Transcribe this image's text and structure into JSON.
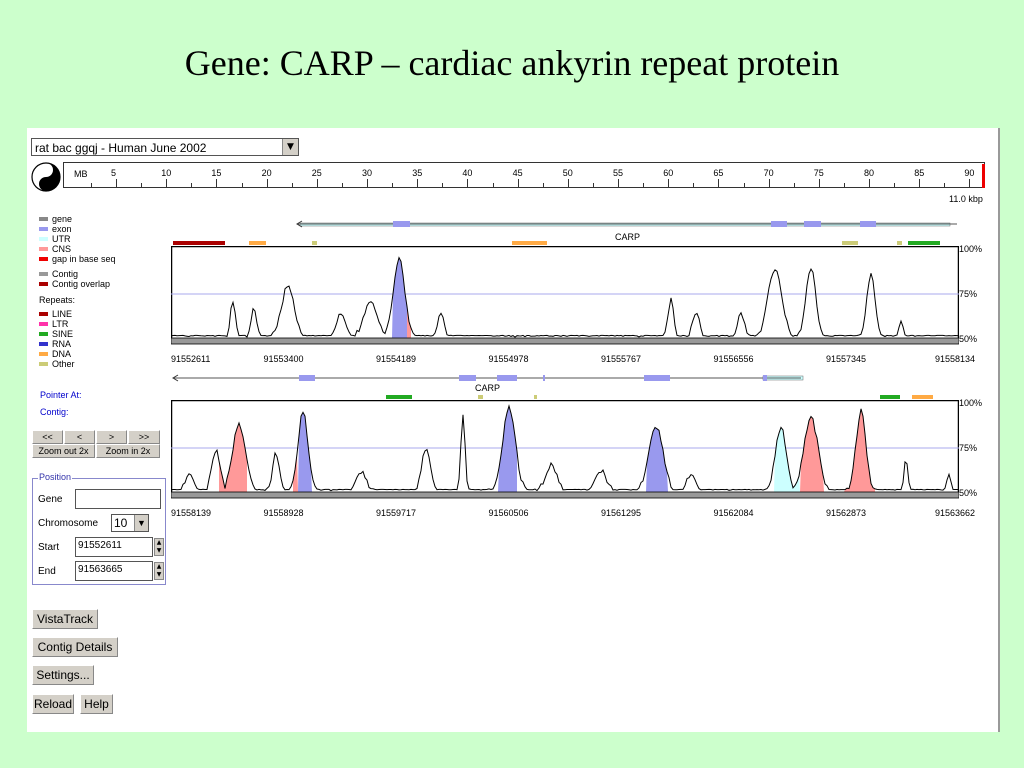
{
  "slide": {
    "title": "Gene: CARP – cardiac ankyrin repeat protein"
  },
  "toolbar": {
    "species": "rat bac ggqj  -  Human June 2002"
  },
  "ruler": {
    "unit": "MB",
    "ticks": [
      "5",
      "10",
      "15",
      "20",
      "25",
      "30",
      "35",
      "40",
      "45",
      "50",
      "55",
      "60",
      "65",
      "70",
      "75",
      "80",
      "85",
      "90"
    ],
    "scale_label": "11.0 kbp"
  },
  "legend": {
    "items": [
      {
        "label": "gene",
        "color": "#888888"
      },
      {
        "label": "exon",
        "color": "#9999ee"
      },
      {
        "label": "UTR",
        "color": "#ccffff"
      },
      {
        "label": "CNS",
        "color": "#ff9999"
      },
      {
        "label": "gap in base seq",
        "color": "#ee0000"
      },
      {
        "label": "Contig",
        "color": "#999999"
      },
      {
        "label": "Contig overlap",
        "color": "#aa0000"
      }
    ],
    "repeats_title": "Repeats:",
    "repeats": [
      {
        "label": "LINE",
        "color": "#aa0000"
      },
      {
        "label": "LTR",
        "color": "#ff33aa"
      },
      {
        "label": "SINE",
        "color": "#22aa22"
      },
      {
        "label": "RNA",
        "color": "#3333cc"
      },
      {
        "label": "DNA",
        "color": "#ffaa44"
      },
      {
        "label": "Other",
        "color": "#cccc77"
      }
    ]
  },
  "info": {
    "pointer_label": "Pointer At:",
    "contig_label": "Contig:"
  },
  "nav": {
    "far_left": "<<",
    "left": "<",
    "right": ">",
    "far_right": ">>",
    "zoom_out": "Zoom out 2x",
    "zoom_in": "Zoom in 2x"
  },
  "position": {
    "title": "Position",
    "gene_label": "Gene",
    "gene_value": "",
    "chromosome_label": "Chromosome",
    "chromosome_value": "10",
    "start_label": "Start",
    "start_value": "91552611",
    "end_label": "End",
    "end_value": "91563665"
  },
  "buttons": {
    "vistatrack": "VistaTrack",
    "contig_details": "Contig Details",
    "settings": "Settings...",
    "reload": "Reload",
    "help": "Help"
  },
  "track1": {
    "gene_name": "CARP",
    "x_labels": [
      "91552611",
      "91553400",
      "91554189",
      "91554978",
      "91555767",
      "91556556",
      "91557345",
      "91558134"
    ],
    "y_labels": [
      "100%",
      "75%",
      "50%"
    ]
  },
  "track2": {
    "gene_name": "CARP",
    "x_labels": [
      "91558139",
      "91558928",
      "91559717",
      "91560506",
      "91561295",
      "91562084",
      "91562873",
      "91563662"
    ],
    "y_labels": [
      "100%",
      "75%",
      "50%"
    ]
  }
}
